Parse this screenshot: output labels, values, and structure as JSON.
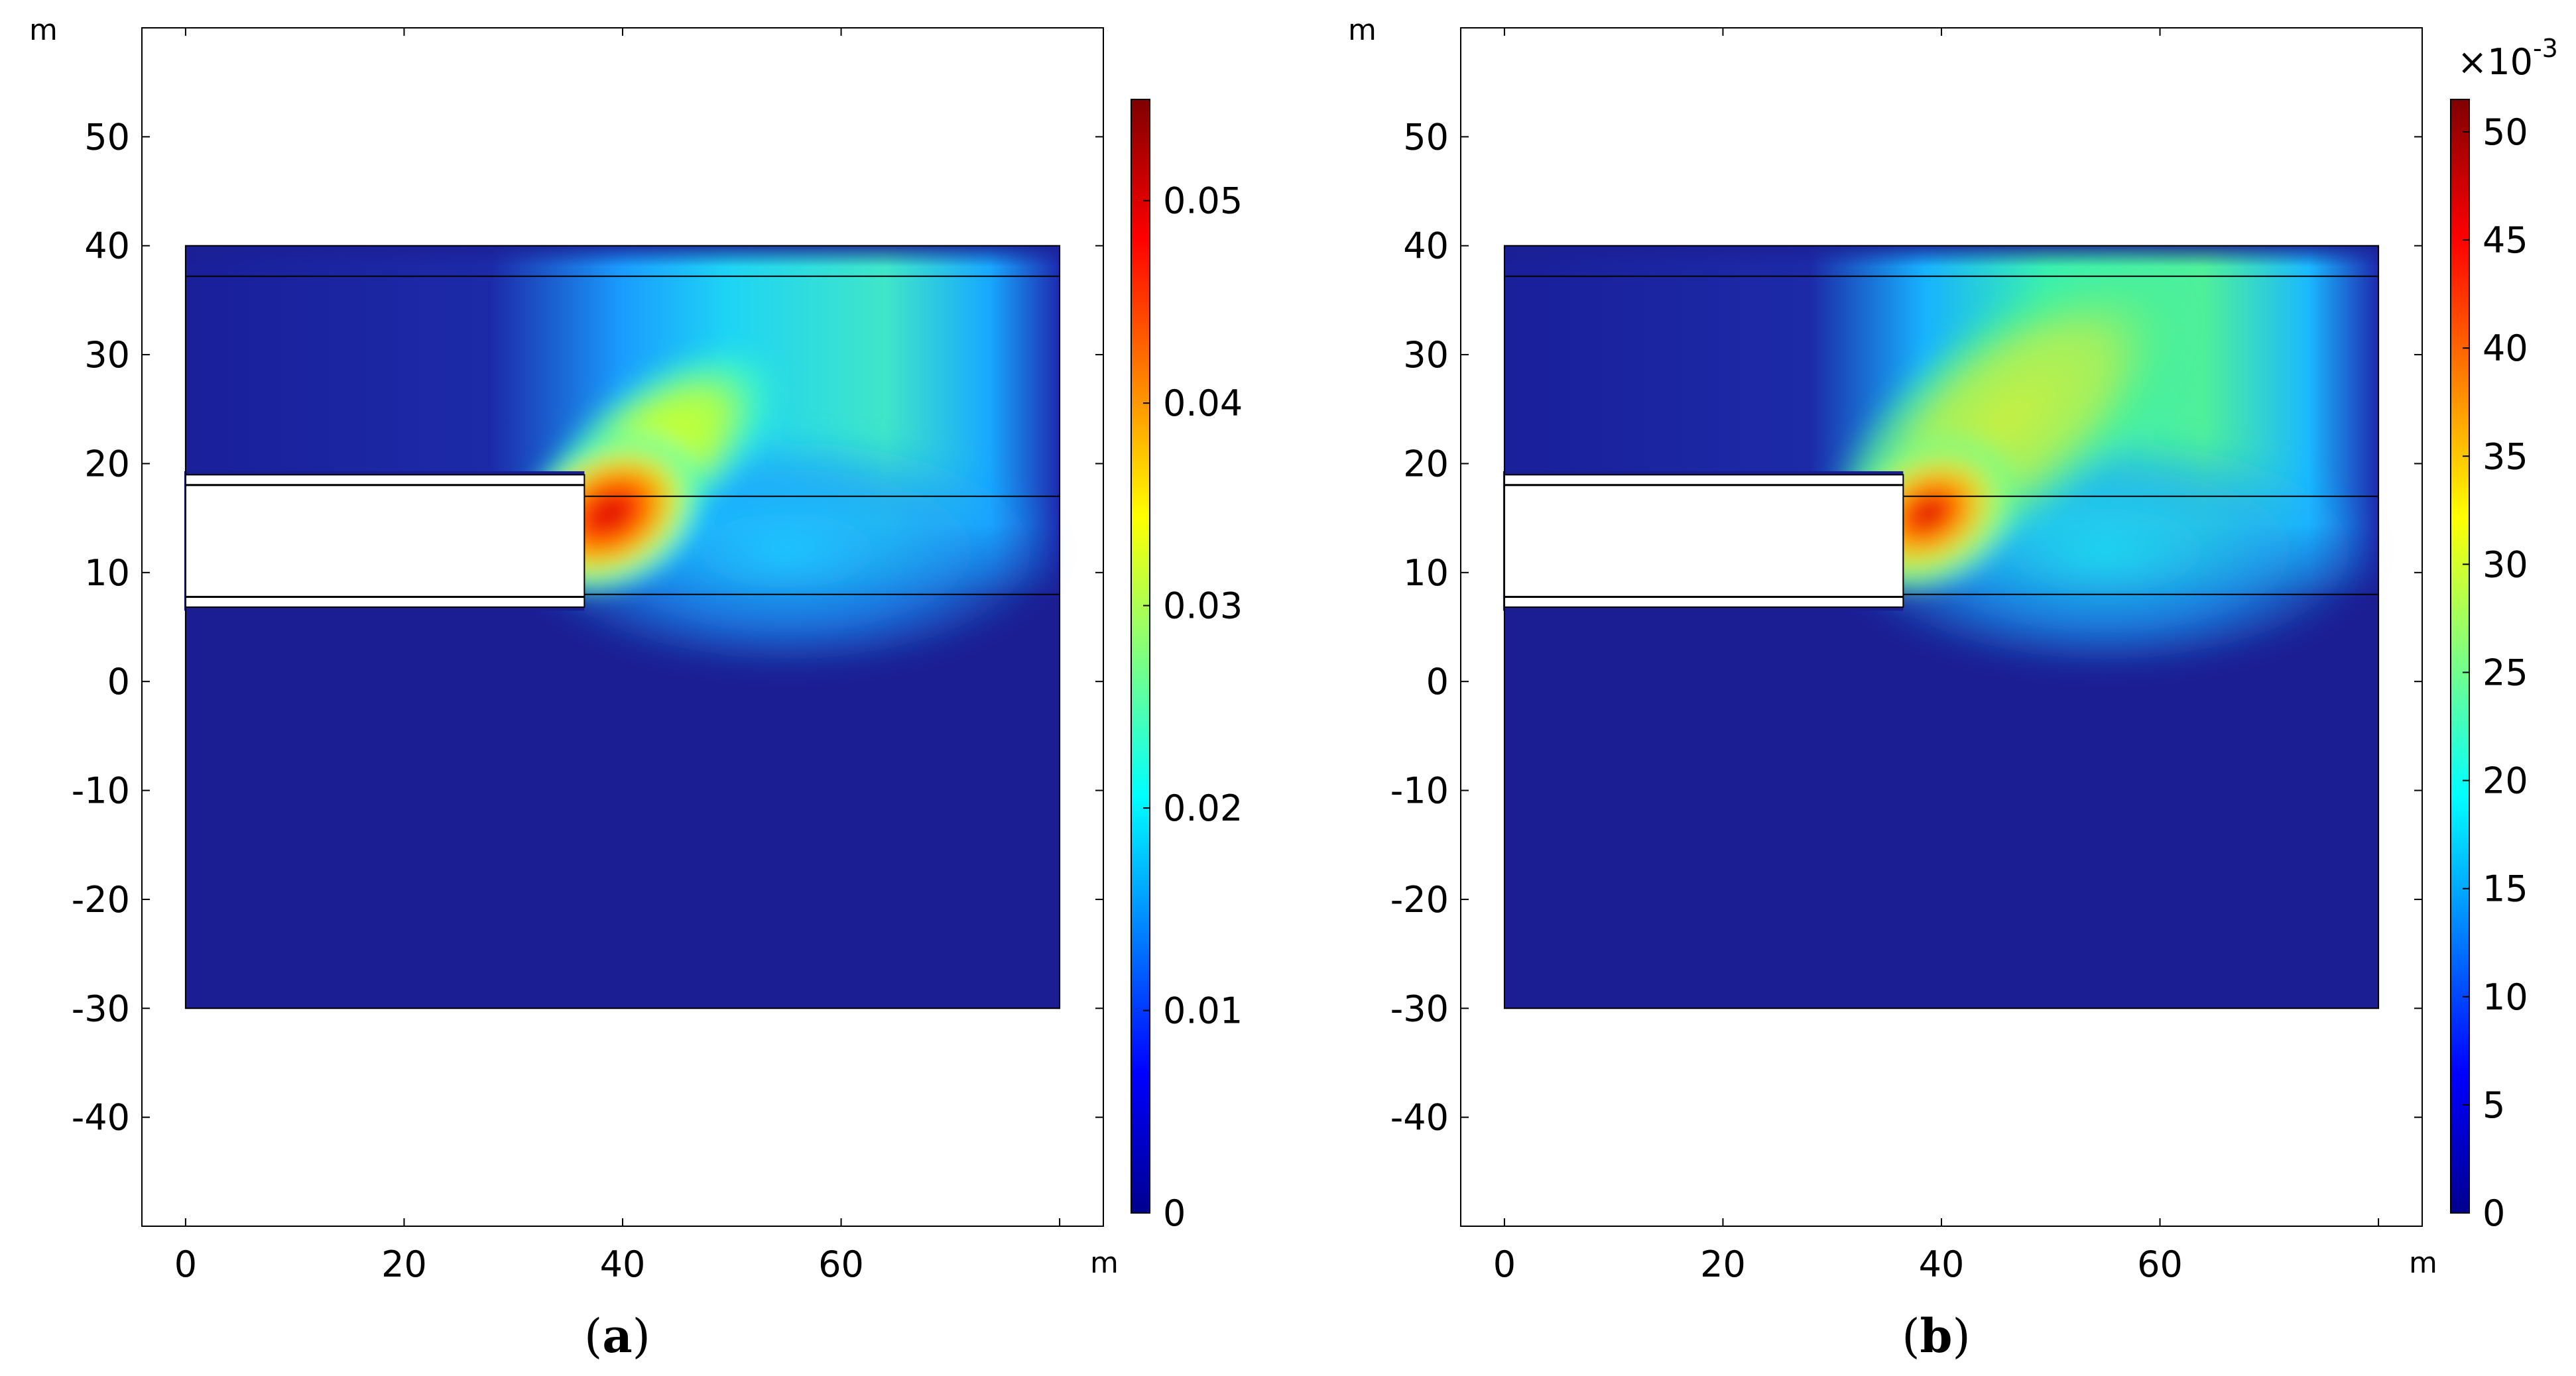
{
  "chart_data": [
    {
      "type": "heatmap",
      "panel_label": "(a)",
      "caption_letter": "a",
      "x_unit": "m",
      "y_unit": "m",
      "xlim": [
        -4,
        84
      ],
      "ylim": [
        -50,
        60
      ],
      "x_ticks": [
        0,
        20,
        40,
        60
      ],
      "x_tick_labels": [
        "0",
        "20",
        "40",
        "60"
      ],
      "y_ticks": [
        50,
        40,
        30,
        20,
        10,
        0,
        -10,
        -20,
        -30,
        -40
      ],
      "y_tick_labels": [
        "50",
        "40",
        "30",
        "20",
        "10",
        "0",
        "-10",
        "-20",
        "-30",
        "-40"
      ],
      "domain": {
        "x": [
          0,
          80
        ],
        "y": [
          -30,
          40
        ]
      },
      "excavation": {
        "x": [
          0,
          36.5
        ],
        "y": [
          6.5,
          19.3
        ],
        "lining_thickness": 1.3
      },
      "layer_boundaries_y": [
        37.2,
        17.0,
        8.0
      ],
      "field": {
        "peak_value": 0.055,
        "peak_location": [
          37,
          13
        ],
        "description_values": {
          "near_face": 0.055,
          "upper_zone": 0.025,
          "lower_zone": 0.001
        }
      },
      "colorbar": {
        "min": 0,
        "max": 0.055,
        "exponent_label": "",
        "ticks": [
          0,
          0.01,
          0.02,
          0.03,
          0.04,
          0.05
        ],
        "tick_labels": [
          "0",
          "0.01",
          "0.02",
          "0.03",
          "0.04",
          "0.05"
        ],
        "colormap": "jet"
      }
    },
    {
      "type": "heatmap",
      "panel_label": "(b)",
      "caption_letter": "b",
      "x_unit": "m",
      "y_unit": "m",
      "xlim": [
        -4,
        84
      ],
      "ylim": [
        -50,
        60
      ],
      "x_ticks": [
        0,
        20,
        40,
        60
      ],
      "x_tick_labels": [
        "0",
        "20",
        "40",
        "60"
      ],
      "y_ticks": [
        50,
        40,
        30,
        20,
        10,
        0,
        -10,
        -20,
        -30,
        -40
      ],
      "y_tick_labels": [
        "50",
        "40",
        "30",
        "20",
        "10",
        "0",
        "-10",
        "-20",
        "-30",
        "-40"
      ],
      "domain": {
        "x": [
          0,
          80
        ],
        "y": [
          -30,
          40
        ]
      },
      "excavation": {
        "x": [
          0,
          36.5
        ],
        "y": [
          6.5,
          19.3
        ],
        "lining_thickness": 1.3
      },
      "layer_boundaries_y": [
        37.2,
        17.0,
        8.0
      ],
      "field": {
        "peak_value": 0.051,
        "peak_location": [
          37,
          13
        ],
        "description_values": {
          "near_face": 0.051,
          "upper_zone": 0.03,
          "lower_zone": 0.001
        }
      },
      "colorbar": {
        "min": 0,
        "max": 51.5,
        "exponent_label": "×10",
        "exponent_power": "-3",
        "ticks": [
          0,
          5,
          10,
          15,
          20,
          25,
          30,
          35,
          40,
          45,
          50
        ],
        "tick_labels": [
          "0",
          "5",
          "10",
          "15",
          "20",
          "25",
          "30",
          "35",
          "40",
          "45",
          "50"
        ],
        "colormap": "jet"
      }
    }
  ]
}
